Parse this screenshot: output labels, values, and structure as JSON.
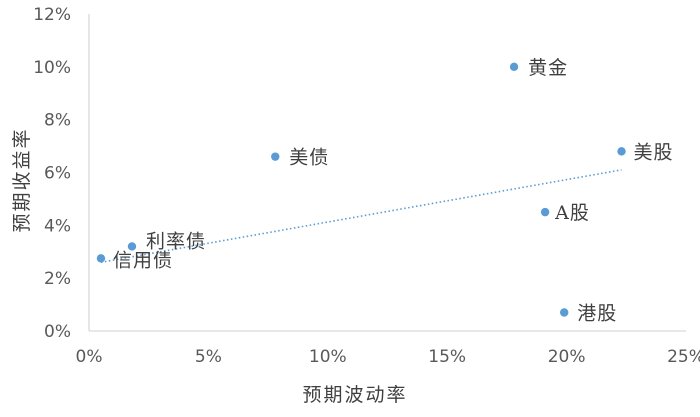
{
  "chart_data": {
    "type": "scatter",
    "xlabel": "预期波动率",
    "ylabel": "预期收益率",
    "xlim": [
      0,
      25
    ],
    "ylim": [
      0,
      12
    ],
    "x_ticks": [
      "0%",
      "5%",
      "10%",
      "15%",
      "20%",
      "25%"
    ],
    "y_ticks": [
      "0%",
      "2%",
      "4%",
      "6%",
      "8%",
      "10%",
      "12%"
    ],
    "grid": false,
    "points": [
      {
        "label": "信用债",
        "x": 0.5,
        "y": 2.75
      },
      {
        "label": "利率债",
        "x": 1.8,
        "y": 3.2
      },
      {
        "label": "美债",
        "x": 7.8,
        "y": 6.6
      },
      {
        "label": "黄金",
        "x": 17.8,
        "y": 10.0
      },
      {
        "label": "A股",
        "x": 19.1,
        "y": 4.5
      },
      {
        "label": "港股",
        "x": 19.9,
        "y": 0.7
      },
      {
        "label": "美股",
        "x": 22.3,
        "y": 6.8
      }
    ],
    "trendline": {
      "style": "dotted",
      "x": [
        0.5,
        22.3
      ],
      "y": [
        2.6,
        6.1
      ]
    },
    "colors": {
      "point": "#5b9bd5",
      "trendline": "#5b9bd5",
      "axis": "#d9d9d9"
    }
  }
}
